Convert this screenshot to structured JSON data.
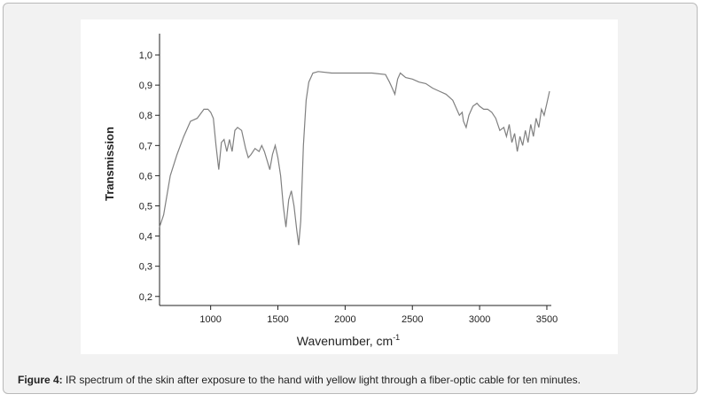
{
  "chart_data": {
    "type": "line",
    "y_label": "Transmission",
    "x_label": "Wavenumber, cm",
    "x_label_sup": "-1",
    "xlim": [
      620,
      3520
    ],
    "ylim": [
      0.17,
      1.05
    ],
    "xticks": [
      1000,
      1500,
      2000,
      2500,
      3000,
      3500
    ],
    "yticks": [
      {
        "value": 0.2,
        "label": "0,2"
      },
      {
        "value": 0.3,
        "label": "0,3"
      },
      {
        "value": 0.4,
        "label": "0,4"
      },
      {
        "value": 0.5,
        "label": "0,5"
      },
      {
        "value": 0.6,
        "label": "0,6"
      },
      {
        "value": 0.7,
        "label": "0,7"
      },
      {
        "value": 0.8,
        "label": "0,8"
      },
      {
        "value": 0.9,
        "label": "0,9"
      },
      {
        "value": 1.0,
        "label": "1,0"
      }
    ],
    "color": "#808080",
    "x": [
      620,
      650,
      700,
      750,
      800,
      850,
      900,
      950,
      980,
      1000,
      1020,
      1040,
      1060,
      1080,
      1100,
      1120,
      1140,
      1160,
      1180,
      1200,
      1230,
      1260,
      1280,
      1300,
      1330,
      1360,
      1380,
      1400,
      1420,
      1440,
      1460,
      1480,
      1500,
      1520,
      1540,
      1560,
      1580,
      1600,
      1620,
      1640,
      1655,
      1670,
      1690,
      1710,
      1730,
      1760,
      1800,
      1900,
      2000,
      2100,
      2200,
      2300,
      2330,
      2350,
      2370,
      2390,
      2410,
      2450,
      2500,
      2550,
      2600,
      2650,
      2700,
      2750,
      2800,
      2830,
      2850,
      2870,
      2880,
      2900,
      2920,
      2950,
      2980,
      3000,
      3030,
      3060,
      3090,
      3120,
      3150,
      3180,
      3200,
      3220,
      3240,
      3260,
      3280,
      3300,
      3320,
      3340,
      3360,
      3380,
      3400,
      3420,
      3440,
      3460,
      3480,
      3500,
      3520
    ],
    "values": [
      0.43,
      0.47,
      0.6,
      0.67,
      0.73,
      0.78,
      0.79,
      0.82,
      0.82,
      0.81,
      0.79,
      0.7,
      0.62,
      0.71,
      0.72,
      0.68,
      0.72,
      0.68,
      0.75,
      0.76,
      0.75,
      0.69,
      0.66,
      0.67,
      0.69,
      0.68,
      0.7,
      0.68,
      0.65,
      0.62,
      0.67,
      0.7,
      0.66,
      0.6,
      0.5,
      0.43,
      0.52,
      0.55,
      0.5,
      0.42,
      0.37,
      0.45,
      0.7,
      0.85,
      0.91,
      0.94,
      0.945,
      0.94,
      0.94,
      0.94,
      0.94,
      0.935,
      0.91,
      0.89,
      0.87,
      0.92,
      0.94,
      0.925,
      0.92,
      0.91,
      0.905,
      0.89,
      0.88,
      0.87,
      0.85,
      0.82,
      0.8,
      0.81,
      0.78,
      0.76,
      0.8,
      0.83,
      0.84,
      0.83,
      0.82,
      0.82,
      0.81,
      0.79,
      0.75,
      0.76,
      0.73,
      0.77,
      0.71,
      0.74,
      0.68,
      0.73,
      0.7,
      0.75,
      0.71,
      0.77,
      0.73,
      0.79,
      0.76,
      0.82,
      0.8,
      0.84,
      0.88
    ]
  },
  "caption_label": "Figure 4:",
  "caption": "IR spectrum of the skin after exposure to the hand with yellow light through a fiber-optic cable for ten minutes."
}
